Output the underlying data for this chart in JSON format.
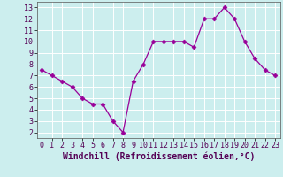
{
  "x": [
    0,
    1,
    2,
    3,
    4,
    5,
    6,
    7,
    8,
    9,
    10,
    11,
    12,
    13,
    14,
    15,
    16,
    17,
    18,
    19,
    20,
    21,
    22,
    23
  ],
  "y": [
    7.5,
    7.0,
    6.5,
    6.0,
    5.0,
    4.5,
    4.5,
    3.0,
    2.0,
    6.5,
    8.0,
    10.0,
    10.0,
    10.0,
    10.0,
    9.5,
    12.0,
    12.0,
    13.0,
    12.0,
    10.0,
    8.5,
    7.5,
    7.0
  ],
  "line_color": "#990099",
  "marker": "D",
  "marker_size": 2.5,
  "bg_color": "#cceeee",
  "grid_color": "#ffffff",
  "xlabel": "Windchill (Refroidissement éolien,°C)",
  "xlabel_fontsize": 7,
  "tick_fontsize": 6,
  "xlim": [
    -0.5,
    23.5
  ],
  "ylim": [
    1.5,
    13.5
  ],
  "yticks": [
    2,
    3,
    4,
    5,
    6,
    7,
    8,
    9,
    10,
    11,
    12,
    13
  ],
  "xticks": [
    0,
    1,
    2,
    3,
    4,
    5,
    6,
    7,
    8,
    9,
    10,
    11,
    12,
    13,
    14,
    15,
    16,
    17,
    18,
    19,
    20,
    21,
    22,
    23
  ]
}
